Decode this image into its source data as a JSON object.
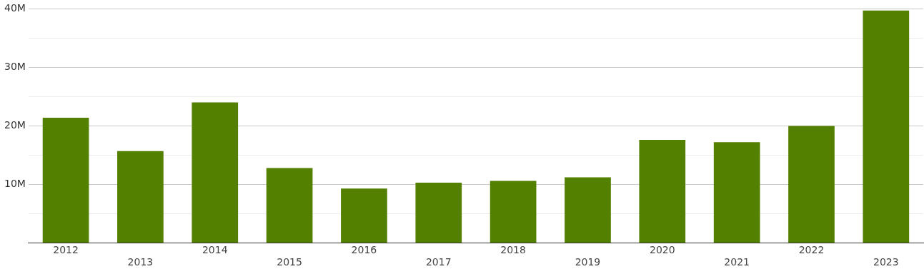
{
  "chart_data": {
    "type": "bar",
    "categories": [
      "2012",
      "2013",
      "2014",
      "2015",
      "2016",
      "2017",
      "2018",
      "2019",
      "2020",
      "2021",
      "2022",
      "2023"
    ],
    "values": [
      21.4,
      15.7,
      24.0,
      12.8,
      9.3,
      10.3,
      10.6,
      11.2,
      17.6,
      17.2,
      20.0,
      39.7
    ],
    "color": "#548000",
    "ylim": [
      0,
      40
    ],
    "yticks": [
      {
        "value": 0,
        "label": null
      },
      {
        "value": 5,
        "label": null
      },
      {
        "value": 10,
        "label": "10M"
      },
      {
        "value": 15,
        "label": null
      },
      {
        "value": 20,
        "label": "20M"
      },
      {
        "value": 25,
        "label": null
      },
      {
        "value": 30,
        "label": "30M"
      },
      {
        "value": 35,
        "label": null
      },
      {
        "value": 40,
        "label": "40M"
      }
    ],
    "grid": "y",
    "legend": false
  }
}
